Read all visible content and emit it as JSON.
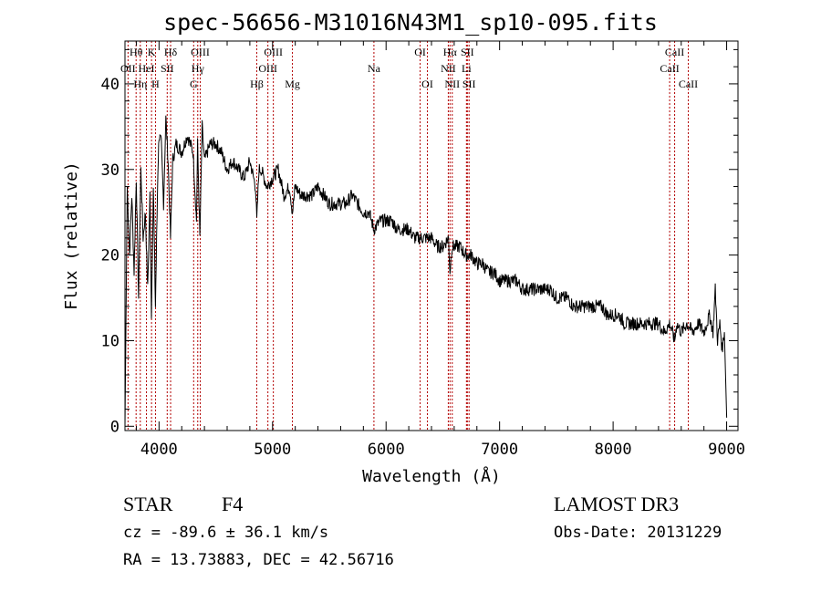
{
  "chart_data": {
    "type": "line",
    "title": "spec-56656-M31016N43M1_sp10-095.fits",
    "xlabel": "Wavelength (Å)",
    "ylabel": "Flux (relative)",
    "xlim": [
      3700,
      9100
    ],
    "ylim": [
      -0.5,
      45
    ],
    "x_ticks": [
      4000,
      5000,
      6000,
      7000,
      8000,
      9000
    ],
    "x_tick_labels": [
      "4000",
      "5000",
      "6000",
      "7000",
      "8000",
      "9000"
    ],
    "y_ticks": [
      0,
      10,
      20,
      30,
      40
    ],
    "y_tick_labels": [
      "0",
      "10",
      "20",
      "30",
      "40"
    ],
    "series": [
      {
        "name": "spectrum",
        "x": [
          3700,
          3720,
          3740,
          3760,
          3780,
          3800,
          3820,
          3840,
          3860,
          3880,
          3900,
          3920,
          3933,
          3950,
          3968,
          3990,
          4000,
          4020,
          4040,
          4060,
          4080,
          4101,
          4120,
          4150,
          4200,
          4250,
          4300,
          4330,
          4340,
          4360,
          4380,
          4400,
          4450,
          4500,
          4550,
          4600,
          4650,
          4700,
          4750,
          4800,
          4850,
          4861,
          4880,
          4900,
          4950,
          5000,
          5050,
          5100,
          5150,
          5175,
          5200,
          5250,
          5300,
          5350,
          5400,
          5450,
          5500,
          5550,
          5600,
          5650,
          5700,
          5750,
          5800,
          5850,
          5893,
          5950,
          6000,
          6050,
          6100,
          6150,
          6200,
          6250,
          6300,
          6350,
          6400,
          6450,
          6500,
          6550,
          6563,
          6580,
          6600,
          6650,
          6700,
          6750,
          6800,
          6850,
          6900,
          6950,
          7000,
          7050,
          7100,
          7150,
          7200,
          7250,
          7300,
          7350,
          7400,
          7450,
          7500,
          7550,
          7600,
          7650,
          7700,
          7750,
          7800,
          7850,
          7900,
          7950,
          8000,
          8050,
          8100,
          8150,
          8200,
          8250,
          8300,
          8350,
          8400,
          8450,
          8500,
          8542,
          8560,
          8600,
          8650,
          8700,
          8750,
          8800,
          8850,
          8880,
          8900,
          8920,
          8940,
          8960,
          8980,
          9000
        ],
        "y": [
          0,
          28,
          20,
          27,
          18,
          29,
          15,
          30,
          22,
          25,
          16,
          27,
          13,
          28,
          14,
          30,
          34,
          33,
          26,
          36,
          31,
          22,
          31,
          33,
          32,
          34,
          32,
          24,
          33,
          22,
          35,
          31,
          33,
          33,
          32,
          30,
          31,
          30,
          29,
          31,
          28,
          24,
          30,
          30,
          28,
          29,
          30,
          27,
          28,
          25,
          28,
          27,
          27,
          27,
          28,
          27,
          26,
          26,
          26,
          26,
          27,
          26,
          25,
          25,
          23,
          24,
          24,
          24,
          23,
          23,
          23,
          22,
          22,
          22,
          22,
          21,
          21,
          22,
          18,
          21,
          21,
          21,
          20,
          20,
          19,
          19,
          18,
          18,
          17,
          17,
          17,
          17,
          16,
          16,
          16,
          16,
          16,
          16,
          15,
          15,
          15,
          14,
          14,
          14,
          14,
          14,
          14,
          13,
          13,
          13,
          12,
          12,
          12,
          12,
          12,
          12,
          12,
          11,
          12,
          10,
          12,
          11,
          12,
          11,
          12,
          11,
          13,
          11,
          16,
          10,
          12,
          9,
          11,
          1
        ]
      }
    ],
    "spectral_lines": [
      {
        "label": "Hθ",
        "wavelength": 3798,
        "row": 1
      },
      {
        "label": "OII",
        "wavelength": 3727,
        "row": 2
      },
      {
        "label": "Hη",
        "wavelength": 3835,
        "row": 3
      },
      {
        "label": "K",
        "wavelength": 3934,
        "row": 1
      },
      {
        "label": "HeI",
        "wavelength": 3889,
        "row": 2
      },
      {
        "label": "H",
        "wavelength": 3969,
        "row": 3
      },
      {
        "label": "SII",
        "wavelength": 4072,
        "row": 2
      },
      {
        "label": "Hδ",
        "wavelength": 4102,
        "row": 1
      },
      {
        "label": "OIII",
        "wavelength": 4363,
        "row": 1
      },
      {
        "label": "Hγ",
        "wavelength": 4341,
        "row": 2
      },
      {
        "label": "G",
        "wavelength": 4305,
        "row": 3
      },
      {
        "label": "Hβ",
        "wavelength": 4861,
        "row": 3
      },
      {
        "label": "OIII",
        "wavelength": 5007,
        "row": 1
      },
      {
        "label": "OIII",
        "wavelength": 4959,
        "row": 2
      },
      {
        "label": "Mg",
        "wavelength": 5175,
        "row": 3
      },
      {
        "label": "Na",
        "wavelength": 5893,
        "row": 2
      },
      {
        "label": "OI",
        "wavelength": 6300,
        "row": 1
      },
      {
        "label": "OI",
        "wavelength": 6364,
        "row": 3
      },
      {
        "label": "Hα",
        "wavelength": 6563,
        "row": 1
      },
      {
        "label": "NII",
        "wavelength": 6548,
        "row": 2
      },
      {
        "label": "NII",
        "wavelength": 6583,
        "row": 3
      },
      {
        "label": "SII",
        "wavelength": 6716,
        "row": 1
      },
      {
        "label": "Li",
        "wavelength": 6708,
        "row": 2
      },
      {
        "label": "SII",
        "wavelength": 6731,
        "row": 3
      },
      {
        "label": "CaII",
        "wavelength": 8542,
        "row": 1
      },
      {
        "label": "CaII",
        "wavelength": 8498,
        "row": 2
      },
      {
        "label": "CaII",
        "wavelength": 8662,
        "row": 3
      }
    ]
  },
  "info": {
    "object_class": "STAR",
    "subclass": "F4",
    "survey": "LAMOST DR3",
    "redshift_line": "cz = -89.6 ± 36.1 km/s",
    "obs_date": "Obs-Date: 20131229",
    "coords": "RA =  13.73883, DEC =  42.56716"
  }
}
